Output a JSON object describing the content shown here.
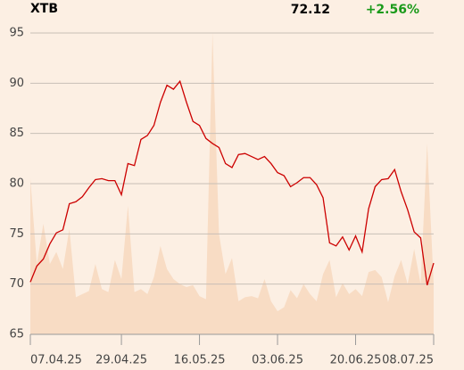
{
  "chart_data": {
    "type": "line",
    "title": "XTB",
    "price": "72.12",
    "change": "+2.56%",
    "change_color": "#1a9a1a",
    "categories": [
      "07.04.25",
      null,
      null,
      null,
      null,
      null,
      null,
      null,
      null,
      null,
      null,
      null,
      null,
      null,
      "29.04.25",
      null,
      null,
      null,
      null,
      null,
      null,
      null,
      null,
      null,
      null,
      null,
      "16.05.25",
      null,
      null,
      null,
      null,
      null,
      null,
      null,
      null,
      null,
      null,
      null,
      "03.06.25",
      null,
      null,
      null,
      null,
      null,
      null,
      null,
      null,
      null,
      null,
      null,
      "20.06.25",
      null,
      null,
      null,
      null,
      null,
      null,
      null,
      null,
      null,
      null,
      null,
      "08.07.25"
    ],
    "series": [
      {
        "color": "#cc0000",
        "values": [
          70.2,
          71.8,
          72.5,
          74,
          75.1,
          75.4,
          78,
          78.2,
          78.7,
          79.6,
          80.4,
          80.5,
          80.3,
          80.3,
          78.9,
          82,
          81.8,
          84.4,
          84.8,
          85.8,
          88.1,
          89.8,
          89.4,
          90.2,
          88.1,
          86.2,
          85.8,
          84.5,
          84,
          83.6,
          82,
          81.6,
          82.9,
          83,
          82.7,
          82.4,
          82.7,
          82,
          81.1,
          80.8,
          79.7,
          80.1,
          80.6,
          80.6,
          79.9,
          78.6,
          74.1,
          73.8,
          74.7,
          73.4,
          74.8,
          73.2,
          77.5,
          79.7,
          80.4,
          80.5,
          81.4,
          79.2,
          77.4,
          75.2,
          74.6,
          69.9,
          72.1
        ]
      }
    ],
    "area": {
      "color": "#f8dcc4",
      "values": [
        80.5,
        72,
        76,
        72,
        73.2,
        71.5,
        75.5,
        68.7,
        69,
        69.3,
        72,
        69.5,
        69.2,
        72.4,
        70.5,
        77.8,
        69.2,
        69.5,
        69,
        70.7,
        73.8,
        71.5,
        70.5,
        70,
        69.7,
        69.9,
        68.8,
        68.5,
        95,
        75,
        71,
        72.6,
        68.3,
        68.7,
        68.8,
        68.6,
        70.5,
        68.3,
        67.3,
        67.7,
        69.4,
        68.6,
        70,
        69,
        68.3,
        71,
        72.4,
        68.7,
        70.1,
        69,
        69.5,
        68.8,
        71.2,
        71.4,
        70.7,
        68.2,
        70.8,
        72.4,
        70,
        73.5,
        70,
        84,
        70
      ]
    },
    "ylim": [
      65,
      95
    ],
    "yticks": [
      65,
      70,
      75,
      80,
      85,
      90,
      95
    ],
    "grid": true
  }
}
